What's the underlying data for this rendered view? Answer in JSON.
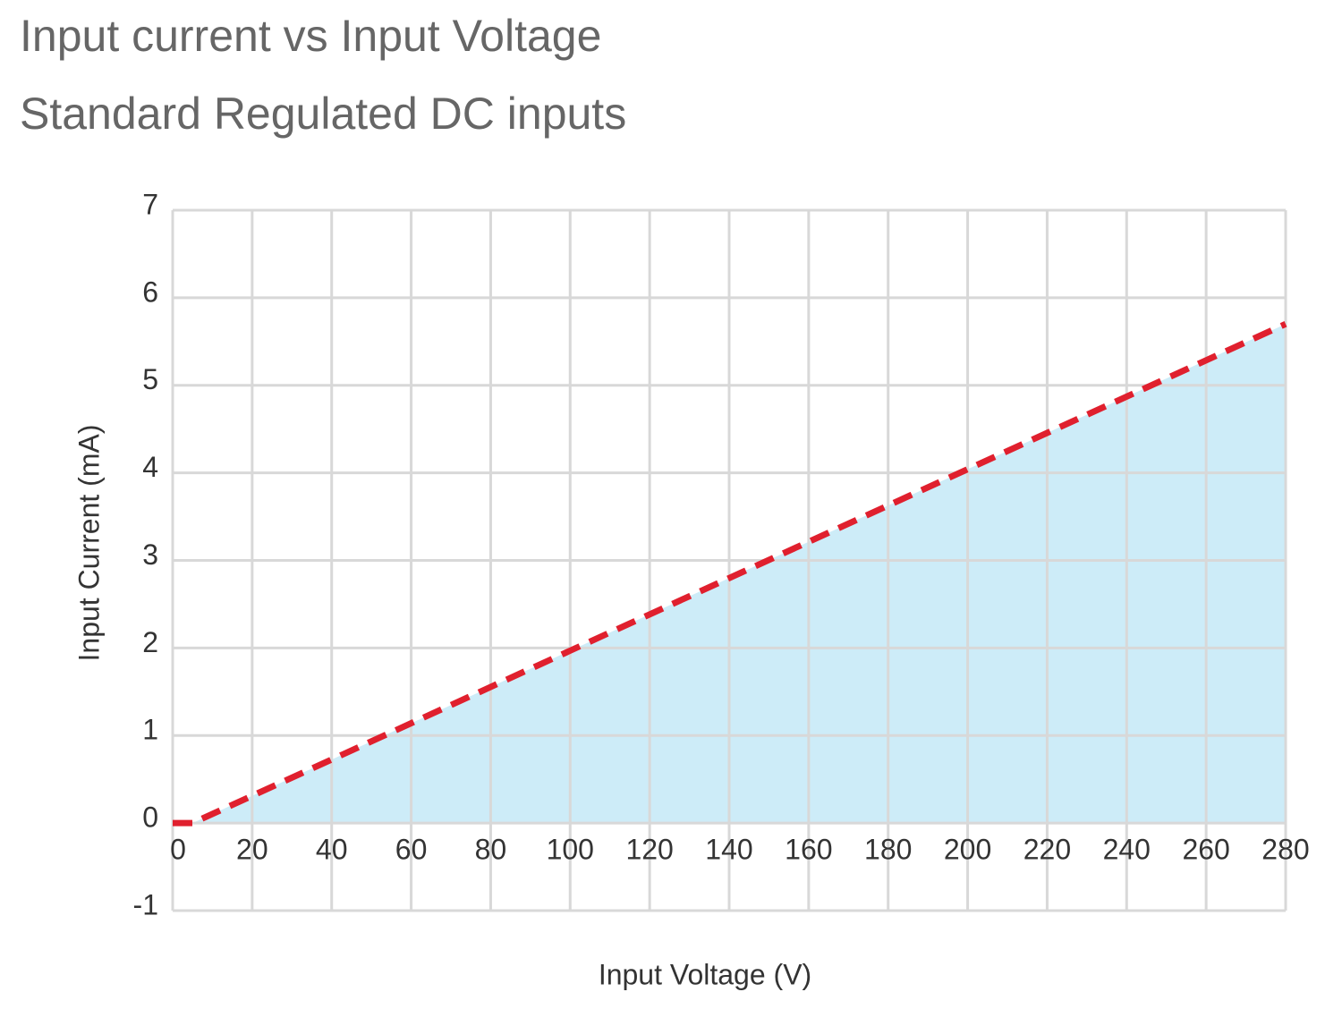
{
  "chart_data": {
    "type": "area",
    "title": "Input current vs Input Voltage",
    "subtitle": "Standard Regulated DC inputs",
    "x_label": "Input Voltage (V)",
    "y_label": "Input Current (mA)",
    "x": [
      0,
      5,
      280
    ],
    "values": [
      0,
      0,
      5.7
    ],
    "line_color": "#e0202e",
    "fill_color": "#cdecf8",
    "line_style": "dashed",
    "xlim": [
      0,
      280
    ],
    "xticks": [
      0,
      20,
      40,
      60,
      80,
      100,
      120,
      140,
      160,
      180,
      200,
      220,
      240,
      260,
      280
    ],
    "ylim": [
      -1,
      7
    ],
    "yticks": [
      -1,
      0,
      1,
      2,
      3,
      4,
      5,
      6,
      7
    ],
    "grid": true
  }
}
